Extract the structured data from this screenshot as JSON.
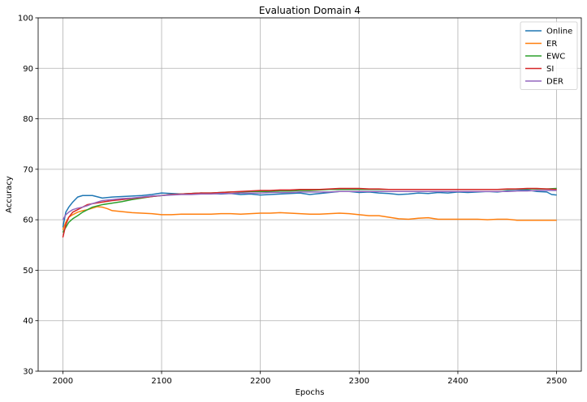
{
  "chart_data": {
    "type": "line",
    "title": "Evaluation Domain 4",
    "xlabel": "Epochs",
    "ylabel": "Accuracy",
    "xlim": [
      1975,
      2525
    ],
    "ylim": [
      30,
      100
    ],
    "xticks": [
      2000,
      2100,
      2200,
      2300,
      2400,
      2500
    ],
    "yticks": [
      30,
      40,
      50,
      60,
      70,
      80,
      90,
      100
    ],
    "grid": true,
    "legend_position": "top-right",
    "series": [
      {
        "name": "Online",
        "color": "#1f77b4",
        "x": [
          2000,
          2003,
          2006,
          2010,
          2015,
          2020,
          2030,
          2040,
          2050,
          2060,
          2070,
          2080,
          2090,
          2100,
          2110,
          2120,
          2130,
          2140,
          2150,
          2160,
          2170,
          2180,
          2190,
          2200,
          2210,
          2220,
          2230,
          2240,
          2250,
          2260,
          2270,
          2280,
          2290,
          2300,
          2310,
          2320,
          2330,
          2340,
          2350,
          2360,
          2370,
          2380,
          2390,
          2400,
          2410,
          2420,
          2430,
          2440,
          2450,
          2460,
          2470,
          2480,
          2490,
          2495,
          2500
        ],
        "y": [
          58.5,
          61.5,
          62.5,
          63.5,
          64.5,
          64.8,
          64.8,
          64.3,
          64.5,
          64.6,
          64.7,
          64.8,
          65.0,
          65.3,
          65.2,
          65.1,
          65.2,
          65.3,
          65.2,
          65.1,
          65.2,
          65.0,
          65.1,
          64.9,
          65.0,
          65.1,
          65.2,
          65.3,
          65.0,
          65.2,
          65.4,
          65.6,
          65.6,
          65.4,
          65.5,
          65.3,
          65.2,
          65.0,
          65.1,
          65.3,
          65.2,
          65.4,
          65.3,
          65.5,
          65.4,
          65.5,
          65.6,
          65.5,
          65.7,
          65.8,
          65.9,
          65.6,
          65.5,
          65.0,
          64.9
        ]
      },
      {
        "name": "ER",
        "color": "#ff7f0e",
        "x": [
          2000,
          2003,
          2006,
          2010,
          2015,
          2020,
          2025,
          2030,
          2035,
          2040,
          2045,
          2050,
          2060,
          2070,
          2080,
          2090,
          2100,
          2110,
          2120,
          2130,
          2140,
          2150,
          2160,
          2170,
          2180,
          2190,
          2200,
          2210,
          2220,
          2230,
          2240,
          2250,
          2260,
          2270,
          2280,
          2290,
          2300,
          2310,
          2320,
          2330,
          2340,
          2350,
          2360,
          2370,
          2380,
          2390,
          2400,
          2410,
          2420,
          2430,
          2440,
          2450,
          2460,
          2470,
          2480,
          2490,
          2500
        ],
        "y": [
          58.0,
          59.5,
          60.5,
          61.0,
          61.5,
          61.8,
          62.0,
          62.3,
          62.6,
          62.5,
          62.2,
          61.8,
          61.6,
          61.4,
          61.3,
          61.2,
          61.0,
          61.0,
          61.1,
          61.1,
          61.1,
          61.1,
          61.2,
          61.2,
          61.1,
          61.2,
          61.3,
          61.3,
          61.4,
          61.3,
          61.2,
          61.1,
          61.1,
          61.2,
          61.3,
          61.2,
          61.0,
          60.8,
          60.8,
          60.5,
          60.2,
          60.1,
          60.3,
          60.4,
          60.1,
          60.1,
          60.1,
          60.1,
          60.1,
          60.0,
          60.1,
          60.1,
          59.9,
          59.9,
          59.9,
          59.9,
          59.9
        ]
      },
      {
        "name": "EWC",
        "color": "#2ca02c",
        "x": [
          2000,
          2003,
          2006,
          2010,
          2015,
          2020,
          2025,
          2030,
          2040,
          2050,
          2060,
          2070,
          2080,
          2090,
          2100,
          2110,
          2120,
          2130,
          2140,
          2150,
          2160,
          2170,
          2180,
          2190,
          2200,
          2210,
          2220,
          2230,
          2240,
          2250,
          2260,
          2270,
          2280,
          2290,
          2300,
          2310,
          2320,
          2330,
          2340,
          2350,
          2360,
          2370,
          2380,
          2390,
          2400,
          2410,
          2420,
          2430,
          2440,
          2450,
          2460,
          2470,
          2480,
          2490,
          2500
        ],
        "y": [
          57.5,
          58.5,
          59.5,
          60.2,
          60.8,
          61.5,
          62.0,
          62.5,
          63.0,
          63.3,
          63.6,
          64.0,
          64.3,
          64.6,
          64.8,
          65.0,
          65.1,
          65.2,
          65.3,
          65.3,
          65.4,
          65.5,
          65.5,
          65.6,
          65.6,
          65.6,
          65.7,
          65.7,
          65.8,
          65.8,
          65.9,
          66.0,
          66.0,
          66.0,
          66.0,
          66.0,
          66.0,
          66.0,
          66.0,
          66.0,
          66.0,
          66.0,
          66.0,
          66.0,
          66.0,
          66.0,
          66.0,
          66.0,
          66.0,
          66.0,
          66.1,
          66.1,
          66.1,
          66.1,
          66.2
        ]
      },
      {
        "name": "SI",
        "color": "#d62728",
        "x": [
          2000,
          2003,
          2006,
          2010,
          2015,
          2020,
          2025,
          2030,
          2040,
          2050,
          2060,
          2070,
          2080,
          2090,
          2100,
          2110,
          2120,
          2130,
          2140,
          2150,
          2160,
          2170,
          2180,
          2190,
          2200,
          2210,
          2220,
          2230,
          2240,
          2250,
          2260,
          2270,
          2280,
          2290,
          2300,
          2310,
          2320,
          2330,
          2340,
          2350,
          2360,
          2370,
          2380,
          2390,
          2400,
          2410,
          2420,
          2430,
          2440,
          2450,
          2460,
          2470,
          2480,
          2490,
          2500
        ],
        "y": [
          56.5,
          59.0,
          60.5,
          61.5,
          62.0,
          62.5,
          63.0,
          63.2,
          63.5,
          63.8,
          64.0,
          64.2,
          64.4,
          64.6,
          64.8,
          65.0,
          65.1,
          65.2,
          65.3,
          65.3,
          65.4,
          65.5,
          65.6,
          65.7,
          65.8,
          65.8,
          65.9,
          65.9,
          66.0,
          66.0,
          66.0,
          66.1,
          66.2,
          66.2,
          66.2,
          66.1,
          66.1,
          66.0,
          66.0,
          66.0,
          66.0,
          66.0,
          66.0,
          66.0,
          66.0,
          66.0,
          66.0,
          66.0,
          66.0,
          66.1,
          66.1,
          66.2,
          66.2,
          66.1,
          66.0
        ]
      },
      {
        "name": "DER",
        "color": "#9467bd",
        "x": [
          2000,
          2003,
          2006,
          2010,
          2015,
          2020,
          2025,
          2030,
          2040,
          2050,
          2060,
          2070,
          2080,
          2090,
          2100,
          2110,
          2120,
          2130,
          2140,
          2150,
          2160,
          2170,
          2180,
          2190,
          2200,
          2210,
          2220,
          2230,
          2240,
          2250,
          2260,
          2270,
          2280,
          2290,
          2300,
          2310,
          2320,
          2330,
          2340,
          2350,
          2360,
          2370,
          2380,
          2390,
          2400,
          2410,
          2420,
          2430,
          2440,
          2450,
          2460,
          2470,
          2480,
          2490,
          2500
        ],
        "y": [
          60.0,
          61.0,
          61.5,
          62.0,
          62.3,
          62.5,
          62.8,
          63.2,
          63.8,
          64.0,
          64.2,
          64.3,
          64.5,
          64.7,
          64.8,
          64.9,
          65.0,
          65.0,
          65.1,
          65.1,
          65.2,
          65.2,
          65.3,
          65.3,
          65.3,
          65.4,
          65.4,
          65.4,
          65.5,
          65.5,
          65.5,
          65.5,
          65.6,
          65.6,
          65.6,
          65.6,
          65.6,
          65.6,
          65.6,
          65.6,
          65.6,
          65.6,
          65.6,
          65.6,
          65.6,
          65.6,
          65.6,
          65.6,
          65.6,
          65.6,
          65.7,
          65.7,
          65.8,
          65.8,
          65.8
        ]
      }
    ]
  }
}
